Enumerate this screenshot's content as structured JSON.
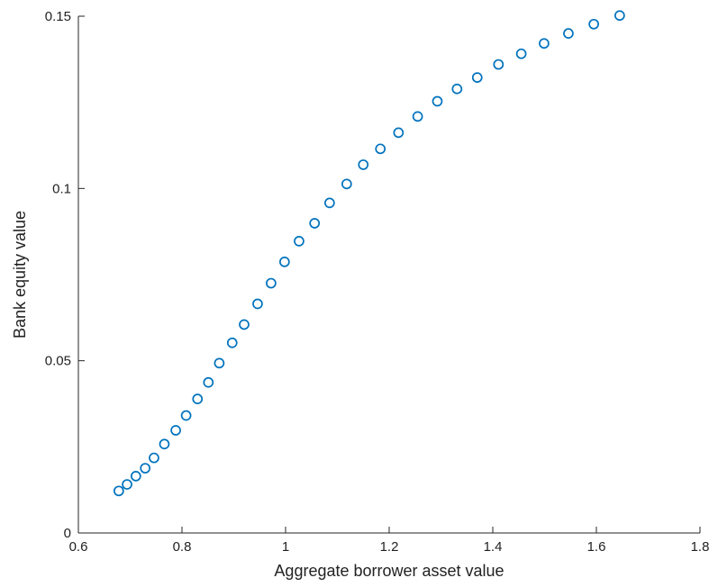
{
  "chart_data": {
    "type": "scatter",
    "title": "",
    "xlabel": "Aggregate borrower asset value",
    "ylabel": "Bank equity value",
    "xlim": [
      0.6,
      1.8
    ],
    "ylim": [
      0,
      0.15
    ],
    "xticks": [
      0.6,
      0.8,
      1.0,
      1.2,
      1.4,
      1.6,
      1.8
    ],
    "xtick_labels": [
      "0.6",
      "0.8",
      "1",
      "1.2",
      "1.4",
      "1.6",
      "1.8"
    ],
    "yticks": [
      0,
      0.05,
      0.1,
      0.15
    ],
    "ytick_labels": [
      "0",
      "0.05",
      "0.1",
      "0.15"
    ],
    "grid": false,
    "marker": "circle-open",
    "colors": {
      "marker": "#0072BD",
      "axis": "#262626"
    },
    "series": [
      {
        "x": [
          0.678,
          0.694,
          0.711,
          0.729,
          0.746,
          0.766,
          0.788,
          0.808,
          0.83,
          0.851,
          0.872,
          0.897,
          0.92,
          0.946,
          0.972,
          0.998,
          1.026,
          1.056,
          1.085,
          1.118,
          1.15,
          1.183,
          1.218,
          1.255,
          1.293,
          1.331,
          1.37,
          1.411,
          1.455,
          1.499,
          1.546,
          1.595,
          1.645
        ],
        "y": [
          0.0122,
          0.0141,
          0.0165,
          0.0188,
          0.0218,
          0.0258,
          0.0298,
          0.0341,
          0.0389,
          0.0437,
          0.0493,
          0.0552,
          0.0605,
          0.0665,
          0.0725,
          0.0787,
          0.0847,
          0.0899,
          0.0958,
          0.1013,
          0.1069,
          0.1115,
          0.1162,
          0.1209,
          0.1253,
          0.1289,
          0.1322,
          0.136,
          0.1391,
          0.1421,
          0.145,
          0.1477,
          0.1502
        ]
      }
    ]
  }
}
